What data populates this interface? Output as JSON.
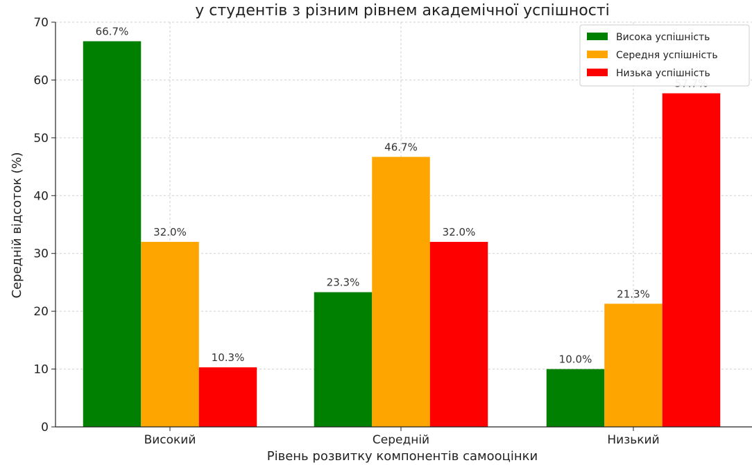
{
  "chart_data": {
    "type": "bar",
    "title": "у студентів з різним рівнем академічної успішності",
    "xlabel": "Рівень розвитку компонентів самооцінки",
    "ylabel": "Середній відсоток (%)",
    "ylim": [
      0,
      70
    ],
    "yticks": [
      0,
      10,
      20,
      30,
      40,
      50,
      60,
      70
    ],
    "categories": [
      "Високий",
      "Середній",
      "Низький"
    ],
    "series": [
      {
        "name": "Висока успішність",
        "color": "#008000",
        "values": [
          66.7,
          23.3,
          10.0
        ],
        "labels": [
          "66.7%",
          "23.3%",
          "10.0%"
        ]
      },
      {
        "name": "Середня успішність",
        "color": "#FFA500",
        "values": [
          32.0,
          46.7,
          21.3
        ],
        "labels": [
          "32.0%",
          "46.7%",
          "21.3%"
        ]
      },
      {
        "name": "Низька успішність",
        "color": "#FF0000",
        "values": [
          10.3,
          32.0,
          57.7
        ],
        "labels": [
          "10.3%",
          "32.0%",
          "57.7%"
        ]
      }
    ],
    "grid": true,
    "legend_position": "top-right"
  }
}
